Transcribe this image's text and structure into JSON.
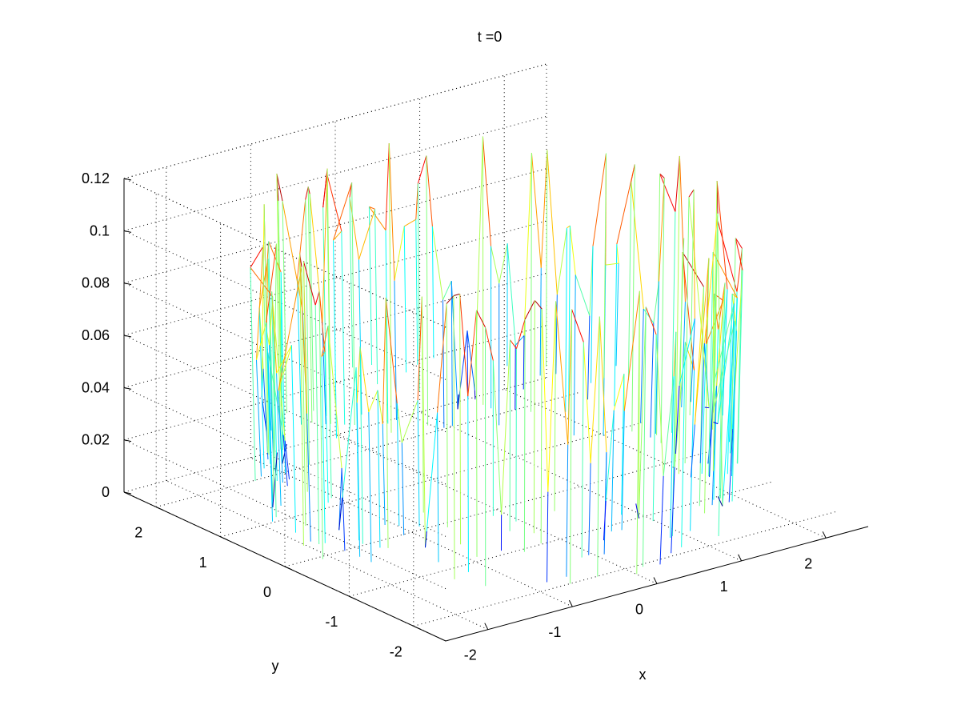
{
  "chart_data": {
    "type": "surface-mesh",
    "title": "t =0",
    "xlabel": "x",
    "ylabel": "y",
    "zlabel": "",
    "xlim": [
      -2.5,
      2.5
    ],
    "ylim": [
      -2.5,
      2.5
    ],
    "zlim": [
      0,
      0.12
    ],
    "x_ticks": [
      "-2",
      "-1",
      "0",
      "1",
      "2"
    ],
    "y_ticks": [
      "-2",
      "-1",
      "0",
      "1",
      "2"
    ],
    "z_ticks": [
      "0",
      "0.02",
      "0.04",
      "0.06",
      "0.08",
      "0.1",
      "0.12"
    ],
    "x_tick_values": [
      -2,
      -1,
      0,
      1,
      2
    ],
    "y_tick_values": [
      -2,
      -1,
      0,
      1,
      2
    ],
    "z_tick_values": [
      0,
      0.02,
      0.04,
      0.06,
      0.08,
      0.1,
      0.12
    ],
    "grid": true,
    "colormap": "jet",
    "surface": {
      "shape": "cylindrical-shell",
      "radius": 2.2,
      "z_range": [
        0,
        0.115
      ],
      "description_values": "random noise values between 0 and 0.115 on a ring of radius about 2.2"
    }
  }
}
